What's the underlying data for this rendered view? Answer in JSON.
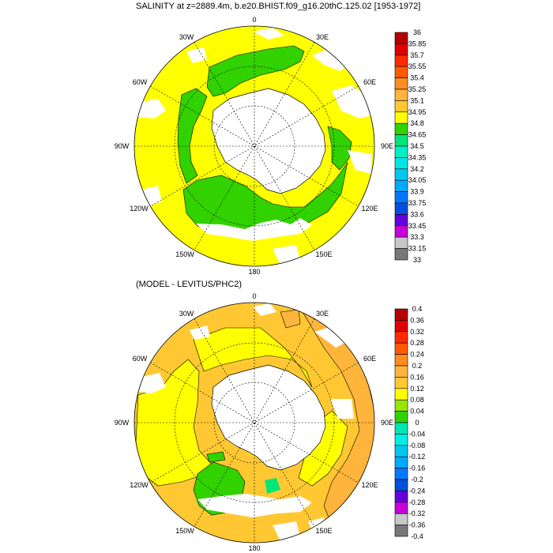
{
  "top_panel": {
    "title": "SALINITY at z=2889.4m, b.e20.BHIST.f09_g16.20thC.125.02 [1953-1972]",
    "lon_labels": [
      "0",
      "30E",
      "60E",
      "90E",
      "120E",
      "150E",
      "180",
      "150W",
      "120W",
      "90W",
      "60W",
      "30W"
    ],
    "colorbar": {
      "labels": [
        "36",
        "35.85",
        "35.7",
        "35.55",
        "35.4",
        "35.25",
        "35.1",
        "34.95",
        "34.8",
        "34.65",
        "34.5",
        "34.35",
        "34.2",
        "34.05",
        "33.9",
        "33.75",
        "33.6",
        "33.45",
        "33.3",
        "33.15",
        "33"
      ],
      "colors": [
        "#b40000",
        "#e10000",
        "#ff2a00",
        "#ff5a00",
        "#ff8c1e",
        "#ffb43c",
        "#ffc832",
        "#ffff00",
        "#32d200",
        "#00e678",
        "#00f0c8",
        "#00e6e6",
        "#00c8f0",
        "#00aaff",
        "#0078ff",
        "#0050dc",
        "#6400dc",
        "#c800dc",
        "#c8c8c8",
        "#787878"
      ]
    }
  },
  "bottom_panel": {
    "title": "(MODEL - LEVITUS/PHC2)",
    "lon_labels": [
      "0",
      "30E",
      "60E",
      "90E",
      "120E",
      "150E",
      "180",
      "150W",
      "120W",
      "90W",
      "60W",
      "30W"
    ],
    "colorbar": {
      "labels": [
        "0.4",
        "0.36",
        "0.32",
        "0.28",
        "0.24",
        "0.2",
        "0.16",
        "0.12",
        "0.08",
        "0.04",
        "0",
        "-0.04",
        "-0.08",
        "-0.12",
        "-0.16",
        "-0.2",
        "-0.24",
        "-0.28",
        "-0.32",
        "-0.36",
        "-0.4"
      ],
      "colors": [
        "#b40000",
        "#e10000",
        "#ff2a00",
        "#ff5a00",
        "#ff8c1e",
        "#ffb43c",
        "#ffc832",
        "#ffff00",
        "#96e600",
        "#32d200",
        "#00e6b4",
        "#00f0e6",
        "#00c8f0",
        "#00aaff",
        "#0078ff",
        "#0050dc",
        "#6400dc",
        "#c800dc",
        "#c8c8c8",
        "#787878"
      ]
    }
  }
}
